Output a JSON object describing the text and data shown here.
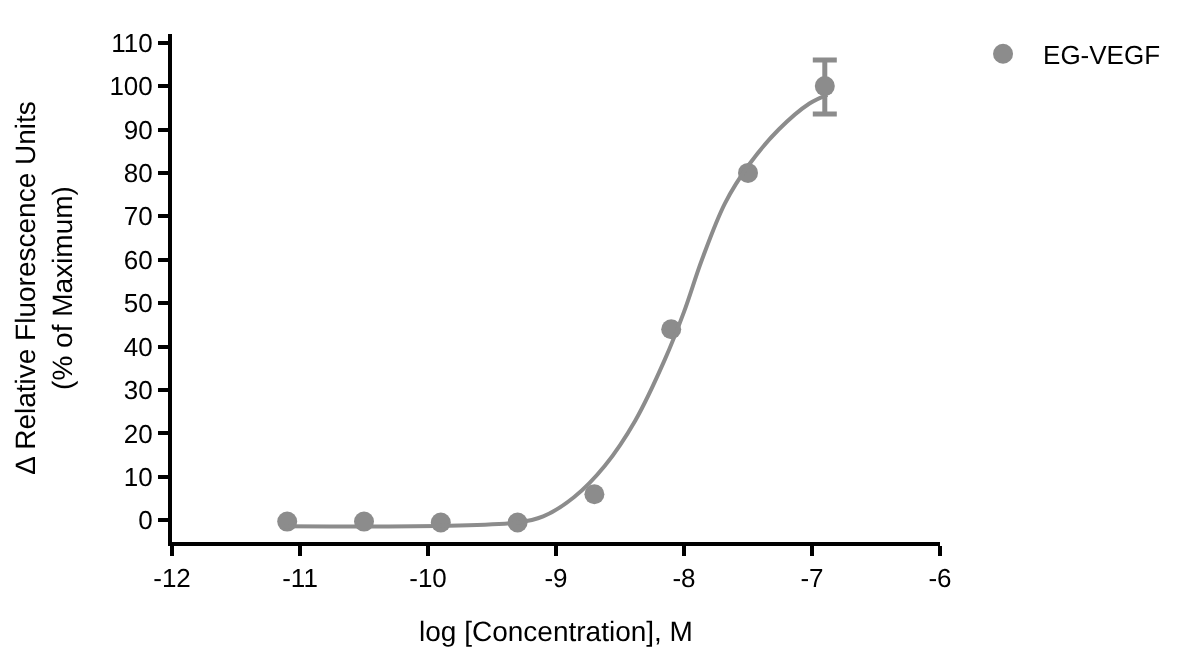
{
  "chart_data": {
    "type": "scatter",
    "xlabel": "log [Concentration], M",
    "ylabel": "Δ Relative Fluorescence Units\n(% of Maximum)",
    "x": [
      -11.1,
      -10.5,
      -9.9,
      -9.3,
      -8.7,
      -8.1,
      -7.5,
      -6.9
    ],
    "series": [
      {
        "name": "EG-VEGF",
        "color": "#8c8c8c",
        "values": [
          -0.3,
          -0.3,
          -0.5,
          -0.5,
          6,
          44,
          80,
          100
        ],
        "errors": [
          null,
          null,
          null,
          null,
          null,
          null,
          null,
          [
            93.6,
            106
          ]
        ],
        "marker": "circle"
      },
      {
        "type": "line",
        "color": "#8c8c8c",
        "marker": "none",
        "x": [
          -11.12,
          -9.3,
          -9.1,
          -8.86,
          -8.62,
          -8.38,
          -8.15,
          -8.0,
          -7.86,
          -7.68,
          -7.49,
          -7.26,
          -7.02,
          -6.88
        ],
        "values": [
          -1.4,
          -0.5,
          0.9,
          5.3,
          12.5,
          23,
          37,
          48,
          60,
          73,
          82,
          90,
          96,
          98
        ]
      }
    ],
    "xlim": [
      -12,
      -6
    ],
    "xticks": [
      -12,
      -11,
      -10,
      -9,
      -8,
      -7,
      -6
    ],
    "ylim": [
      -5,
      112
    ],
    "yticks": [
      0,
      10,
      20,
      30,
      40,
      50,
      60,
      70,
      80,
      90,
      100,
      110
    ],
    "legend": "top right"
  }
}
